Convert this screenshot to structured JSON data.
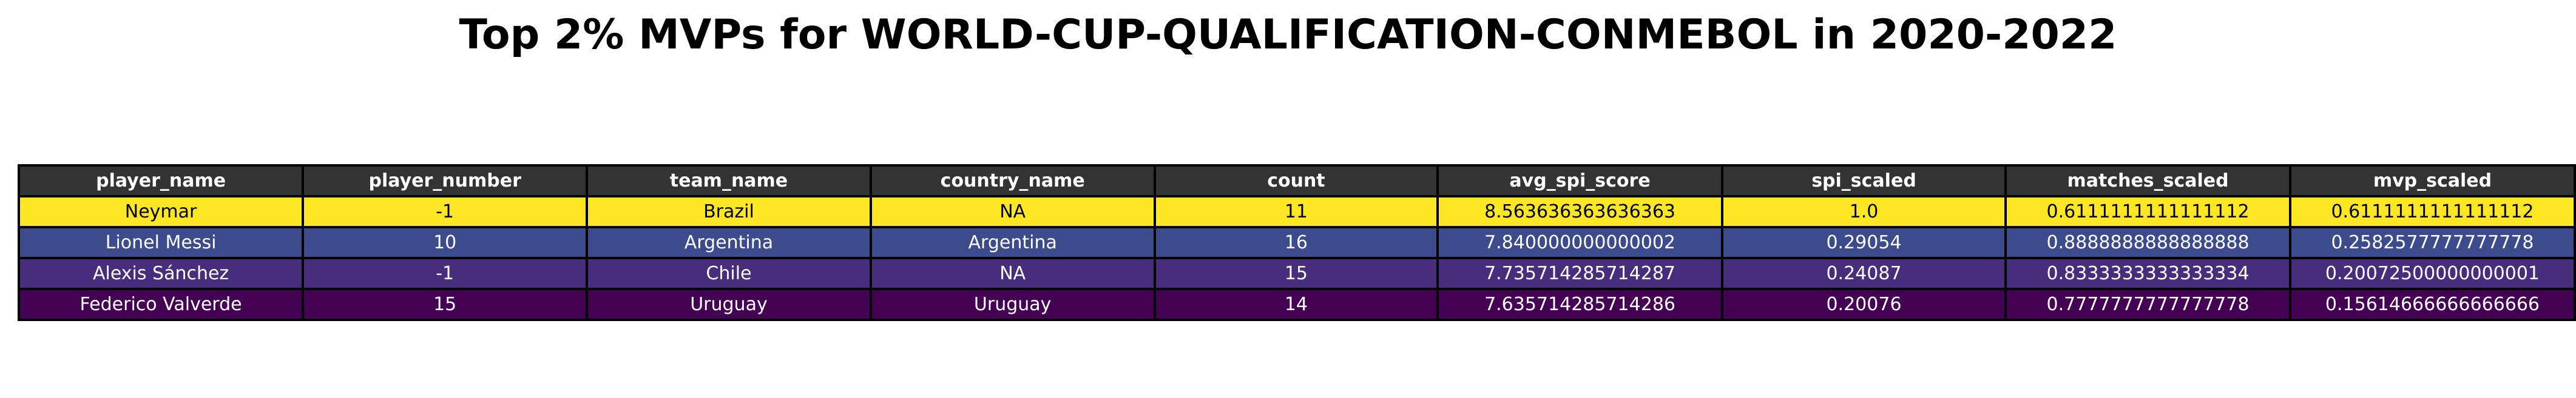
{
  "title": "Top 2% MVPs for WORLD-CUP-QUALIFICATION-CONMEBOL in 2020-2022",
  "colors": {
    "header_bg": "#333333",
    "header_text": "#ffffff",
    "border": "#000000"
  },
  "chart_data": {
    "type": "table",
    "title": "Top 2% MVPs for WORLD-CUP-QUALIFICATION-CONMEBOL in 2020-2022",
    "columns": [
      "player_name",
      "player_number",
      "team_name",
      "country_name",
      "count",
      "avg_spi_score",
      "spi_scaled",
      "matches_scaled",
      "mvp_scaled"
    ],
    "rows": [
      {
        "cells": [
          "Neymar",
          "-1",
          "Brazil",
          "NA",
          "11",
          "8.563636363636363",
          "1.0",
          "0.6111111111111112",
          "0.6111111111111112"
        ],
        "bg": "#fde725",
        "fg": "#000000"
      },
      {
        "cells": [
          "Lionel Messi",
          "10",
          "Argentina",
          "Argentina",
          "16",
          "7.840000000000002",
          "0.29054",
          "0.8888888888888888",
          "0.2582577777777778"
        ],
        "bg": "#3b4b8c",
        "fg": "#ffffff"
      },
      {
        "cells": [
          "Alexis Sánchez",
          "-1",
          "Chile",
          "NA",
          "15",
          "7.735714285714287",
          "0.24087",
          "0.8333333333333334",
          "0.20072500000000001"
        ],
        "bg": "#472d7b",
        "fg": "#ffffff"
      },
      {
        "cells": [
          "Federico Valverde",
          "15",
          "Uruguay",
          "Uruguay",
          "14",
          "7.635714285714286",
          "0.20076",
          "0.7777777777777778",
          "0.15614666666666666"
        ],
        "bg": "#440154",
        "fg": "#ffffff"
      }
    ]
  }
}
